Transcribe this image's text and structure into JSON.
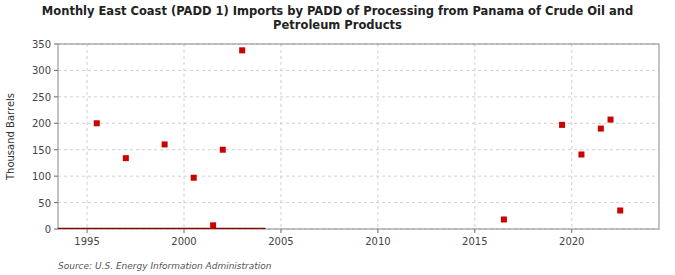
{
  "chart_data": {
    "type": "scatter",
    "title": "Monthly East Coast (PADD 1) Imports by PADD of Processing from Panama of Crude Oil and\nPetroleum Products",
    "ylabel": "Thousand Barrels",
    "source": "Source: U.S. Energy Information Administration",
    "series": [
      {
        "type": "line",
        "color": "#8b0000",
        "x": [
          1993.5,
          2004.2
        ],
        "values": [
          0,
          0
        ]
      },
      {
        "type": "scatter",
        "color": "#cc0000",
        "marker": "square",
        "x": [
          1995.5,
          1997.0,
          1999.0,
          2000.5,
          2001.5,
          2002.0,
          2003.0,
          2016.5,
          2019.5,
          2020.5,
          2021.5,
          2022.0,
          2022.5
        ],
        "values": [
          200,
          134,
          160,
          97,
          7,
          150,
          338,
          18,
          197,
          141,
          190,
          207,
          35
        ]
      }
    ],
    "xlim": [
      1993.5,
      2024.5
    ],
    "ylim": [
      0,
      350
    ],
    "xticks": [
      1995,
      2000,
      2005,
      2010,
      2015,
      2020
    ],
    "yticks": [
      0,
      50,
      100,
      150,
      200,
      250,
      300,
      350
    ],
    "grid": true
  }
}
